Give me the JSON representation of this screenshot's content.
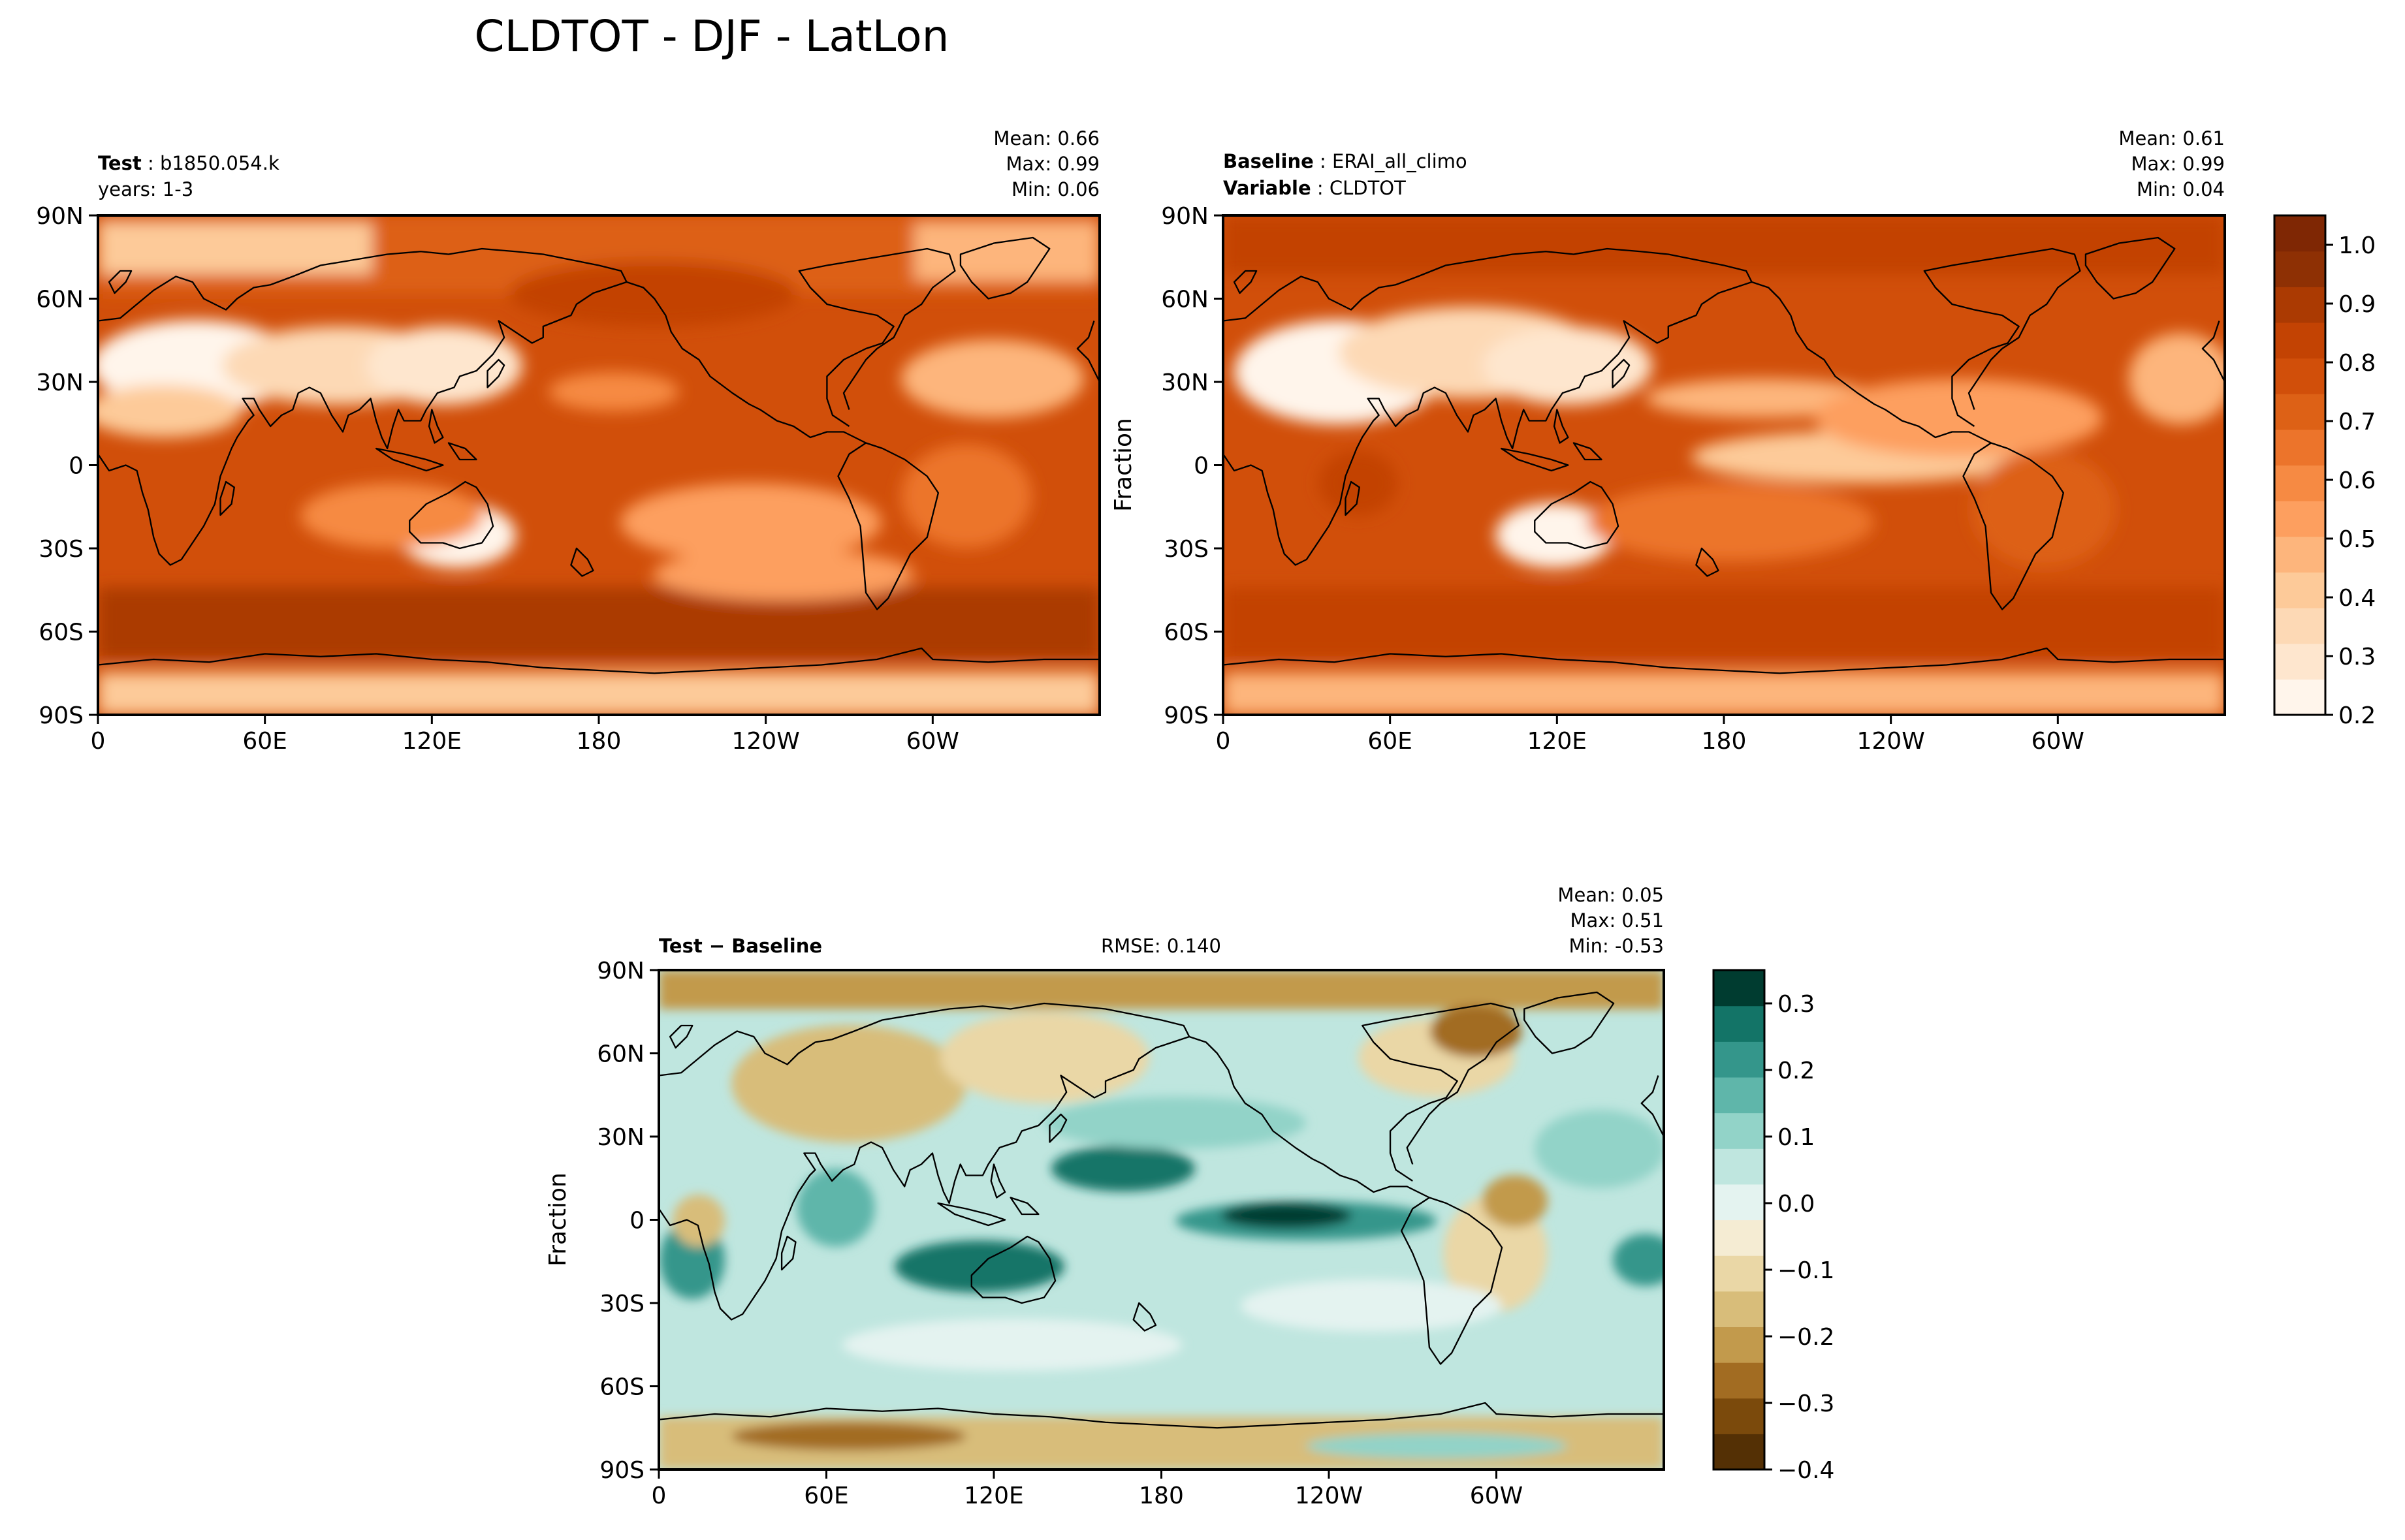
{
  "figure": {
    "title": "CLDTOT - DJF - LatLon"
  },
  "colors": {
    "seq": [
      "#fff5eb",
      "#fee6ce",
      "#fdd9b5",
      "#fdca99",
      "#fdb57c",
      "#fd9f5f",
      "#f68a43",
      "#ec742b",
      "#dd6116",
      "#d14f0a",
      "#c34303",
      "#ab3a02",
      "#8e3004",
      "#7f2704"
    ],
    "div": [
      "#543005",
      "#7b4a0c",
      "#a26c22",
      "#c29a4c",
      "#d8bd7a",
      "#ead7a6",
      "#f5ecd3",
      "#e4f3f0",
      "#bfe6df",
      "#92d3c8",
      "#5fb6aa",
      "#34968b",
      "#137467",
      "#003c30"
    ],
    "land": "#000000"
  },
  "chart_data": [
    {
      "type": "heatmap",
      "panel": "test",
      "title_label": "Test",
      "title_value": "b1850.054.k",
      "subtitle": "years: 1-3",
      "stats": {
        "mean": "Mean:  0.66",
        "max": "Max:  0.99",
        "min": "Min:  0.06"
      },
      "xticks": [
        "0",
        "60E",
        "120E",
        "180",
        "120W",
        "60W"
      ],
      "yticks": [
        "90N",
        "60N",
        "30N",
        "0",
        "30S",
        "60S",
        "90S"
      ],
      "xlim": [
        0,
        360
      ],
      "ylim": [
        -90,
        90
      ]
    },
    {
      "type": "heatmap",
      "panel": "baseline",
      "title_label": "Baseline",
      "title_value": "ERAI_all_climo",
      "subtitle_label": "Variable",
      "subtitle_value": "CLDTOT",
      "stats": {
        "mean": "Mean:  0.61",
        "max": "Max:  0.99",
        "min": "Min:  0.04"
      },
      "ylabel": "Fraction",
      "xticks": [
        "0",
        "60E",
        "120E",
        "180",
        "120W",
        "60W"
      ],
      "yticks": [
        "90N",
        "60N",
        "30N",
        "0",
        "30S",
        "60S",
        "90S"
      ],
      "colorbar": {
        "ticks": [
          "1.0",
          "0.9",
          "0.8",
          "0.7",
          "0.6",
          "0.5",
          "0.4",
          "0.3",
          "0.2"
        ],
        "range": [
          0.2,
          1.05
        ]
      }
    },
    {
      "type": "heatmap",
      "panel": "diff",
      "title_label": "Test − Baseline",
      "center_text": "RMSE: 0.140",
      "stats": {
        "mean": "Mean:  0.05",
        "max": "Max:  0.51",
        "min": "Min: -0.53"
      },
      "ylabel": "Fraction",
      "xticks": [
        "0",
        "60E",
        "120E",
        "180",
        "120W",
        "60W"
      ],
      "yticks": [
        "90N",
        "60N",
        "30N",
        "0",
        "30S",
        "60S",
        "90S"
      ],
      "colorbar": {
        "ticks": [
          "0.3",
          "0.2",
          "0.1",
          "0.0",
          "−0.1",
          "−0.2",
          "−0.3",
          "−0.4"
        ],
        "range": [
          -0.4,
          0.35
        ]
      }
    }
  ]
}
